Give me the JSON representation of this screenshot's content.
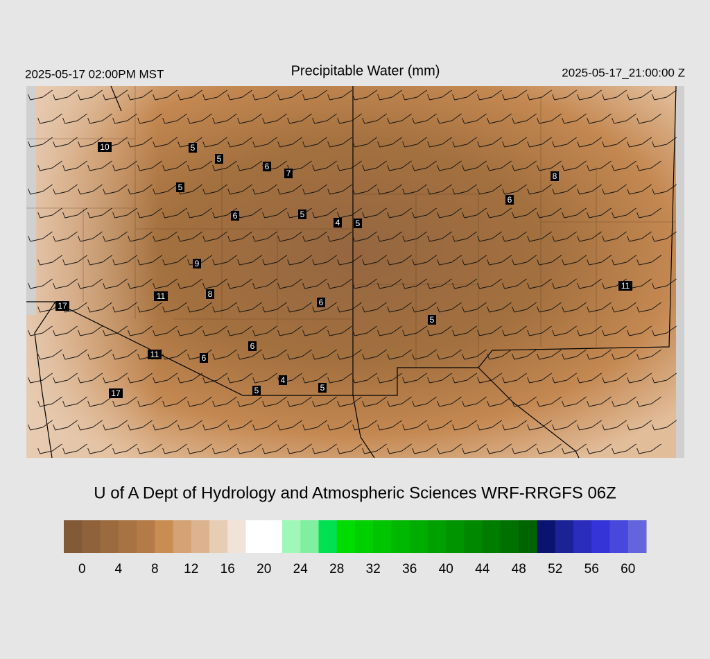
{
  "header": {
    "left": "2025-05-17 02:00PM MST",
    "title": "Precipitable Water (mm)",
    "right": "2025-05-17_21:00:00 Z"
  },
  "map": {
    "station_values": [
      10,
      5,
      5,
      6,
      7,
      5,
      6,
      5,
      4,
      5,
      8,
      6,
      9,
      11,
      8,
      6,
      11,
      5,
      17,
      11,
      6,
      6,
      4,
      5,
      5,
      17
    ]
  },
  "credit": "U of A Dept of Hydrology and Atmospheric Sciences WRF-RRGFS 06Z",
  "colorbar": {
    "lim": [
      -2,
      62
    ],
    "colors": [
      "#835a37",
      "#8f623b",
      "#9b6a3f",
      "#a87343",
      "#b47b47",
      "#c98d52",
      "#d4a274",
      "#dcb38f",
      "#e8cdb5",
      "#f2e3d8",
      "#ffffff",
      "#ffffff",
      "#a0f8b8",
      "#80f0a0",
      "#00e050",
      "#00dc00",
      "#00d000",
      "#00c400",
      "#00b800",
      "#00ac00",
      "#00a000",
      "#009400",
      "#008800",
      "#007c00",
      "#007000",
      "#006400",
      "#0a1470",
      "#1a2296",
      "#2a2cbc",
      "#3434d8",
      "#4848dc",
      "#6464dc"
    ],
    "ticks": [
      0,
      4,
      8,
      12,
      16,
      20,
      24,
      28,
      32,
      36,
      40,
      44,
      48,
      52,
      56,
      60
    ]
  }
}
